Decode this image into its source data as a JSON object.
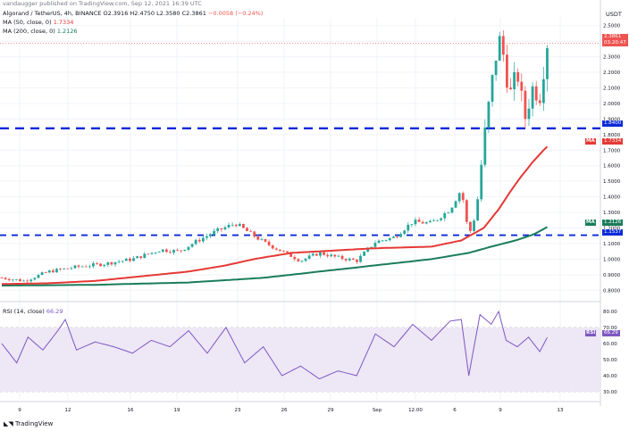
{
  "watermark": "vandaugger published on TradingView.com, Sep 12, 2021 16:39 UTC",
  "legend": {
    "symbol": "Algorand / TetherUS, 4h, BINANCE",
    "o": "O2.3916",
    "h": "H2.4750",
    "l": "L2.3580",
    "c": "C2.3861",
    "chg": "−0.0058 (−0.24%)",
    "ma50_label": "MA (50, close, 0)",
    "ma50_value": "1.7334",
    "ma200_label": "MA (200, close, 0)",
    "ma200_value": "1.2126",
    "rsi_label": "RSI (14, close)",
    "rsi_value": "66.29"
  },
  "currency": "USDT",
  "tags": {
    "price": "2.3861",
    "countdown": "03:20:47",
    "level_high": "1.8400",
    "level_low": "1.1537",
    "ma50": "1.7334",
    "ma200": "1.2126",
    "ma_tag": "MA",
    "rsi_tag": "RSI",
    "rsi": "66.29"
  },
  "footer": {
    "logo": "TradingView"
  },
  "colors": {
    "up": "#26a69a",
    "down": "#ef5350",
    "ma50": "#e53935",
    "ma200": "#1a7d5a",
    "level": "#0b2ad8",
    "rsi": "#7e57c2",
    "rsi_band": "#ede7f6"
  },
  "chart_data": {
    "type": "candlestick",
    "y_ticks": [
      "2.5000",
      "2.4000",
      "2.3000",
      "2.2000",
      "2.1000",
      "2.0000",
      "1.9000",
      "1.8000",
      "1.7000",
      "1.6000",
      "1.5000",
      "1.4000",
      "1.3000",
      "1.2000",
      "1.1000",
      "1.0000",
      "0.9000",
      "0.8000"
    ],
    "x_ticks": [
      "9",
      "12",
      "16",
      "19",
      "23",
      "26",
      "29",
      "Sep",
      "12:00",
      "6",
      "9",
      "13"
    ],
    "rsi_ticks": [
      "80.00",
      "70.00",
      "60.00",
      "50.00",
      "40.00",
      "30.00"
    ],
    "horizontal_levels": [
      1.84,
      1.1537
    ],
    "last_price": 2.3861,
    "ma50": [
      [
        0,
        0.84
      ],
      [
        25,
        0.845
      ],
      [
        50,
        0.86
      ],
      [
        75,
        0.89
      ],
      [
        100,
        0.92
      ],
      [
        120,
        0.96
      ],
      [
        135,
        1.0
      ],
      [
        155,
        1.04
      ],
      [
        170,
        1.05
      ],
      [
        185,
        1.06
      ],
      [
        200,
        1.07
      ],
      [
        215,
        1.075
      ],
      [
        230,
        1.08
      ],
      [
        246,
        1.12
      ],
      [
        258,
        1.2
      ],
      [
        266,
        1.32
      ],
      [
        272,
        1.43
      ],
      [
        278,
        1.53
      ],
      [
        284,
        1.62
      ],
      [
        290,
        1.7
      ],
      [
        293,
        1.7334
      ]
    ],
    "ma200": [
      [
        0,
        0.83
      ],
      [
        50,
        0.835
      ],
      [
        100,
        0.85
      ],
      [
        140,
        0.88
      ],
      [
        170,
        0.92
      ],
      [
        200,
        0.96
      ],
      [
        230,
        1.0
      ],
      [
        250,
        1.04
      ],
      [
        262,
        1.08
      ],
      [
        275,
        1.12
      ],
      [
        285,
        1.16
      ],
      [
        293,
        1.2126
      ]
    ],
    "candles_anchor": [
      [
        0,
        0.88
      ],
      [
        12,
        0.86
      ],
      [
        25,
        0.92
      ],
      [
        40,
        0.95
      ],
      [
        55,
        0.97
      ],
      [
        70,
        1.0
      ],
      [
        85,
        1.06
      ],
      [
        95,
        1.05
      ],
      [
        105,
        1.12
      ],
      [
        115,
        1.18
      ],
      [
        125,
        1.23
      ],
      [
        130,
        1.19
      ],
      [
        140,
        1.11
      ],
      [
        150,
        1.05
      ],
      [
        160,
        0.99
      ],
      [
        170,
        1.04
      ],
      [
        180,
        1.01
      ],
      [
        190,
        0.99
      ],
      [
        200,
        1.11
      ],
      [
        210,
        1.14
      ],
      [
        220,
        1.24
      ],
      [
        230,
        1.23
      ],
      [
        240,
        1.32
      ],
      [
        246,
        1.45
      ],
      [
        250,
        1.15
      ],
      [
        254,
        1.3
      ],
      [
        258,
        1.75
      ],
      [
        262,
        2.1
      ],
      [
        266,
        2.42
      ],
      [
        268,
        2.35
      ],
      [
        272,
        2.05
      ],
      [
        276,
        2.2
      ],
      [
        280,
        1.9
      ],
      [
        284,
        2.1
      ],
      [
        288,
        2.05
      ],
      [
        292,
        2.39
      ]
    ],
    "rsi_anchor": [
      [
        0,
        60
      ],
      [
        8,
        48
      ],
      [
        14,
        64
      ],
      [
        22,
        56
      ],
      [
        30,
        68
      ],
      [
        34,
        75
      ],
      [
        40,
        56
      ],
      [
        50,
        61
      ],
      [
        60,
        58
      ],
      [
        70,
        54
      ],
      [
        80,
        62
      ],
      [
        90,
        58
      ],
      [
        100,
        68
      ],
      [
        110,
        54
      ],
      [
        120,
        70
      ],
      [
        130,
        48
      ],
      [
        140,
        58
      ],
      [
        150,
        40
      ],
      [
        160,
        46
      ],
      [
        170,
        38
      ],
      [
        180,
        43
      ],
      [
        190,
        40
      ],
      [
        200,
        66
      ],
      [
        210,
        58
      ],
      [
        220,
        72
      ],
      [
        230,
        62
      ],
      [
        240,
        74
      ],
      [
        246,
        75
      ],
      [
        250,
        40
      ],
      [
        256,
        78
      ],
      [
        262,
        72
      ],
      [
        266,
        80
      ],
      [
        270,
        62
      ],
      [
        276,
        58
      ],
      [
        282,
        64
      ],
      [
        288,
        55
      ],
      [
        293,
        66
      ]
    ]
  }
}
